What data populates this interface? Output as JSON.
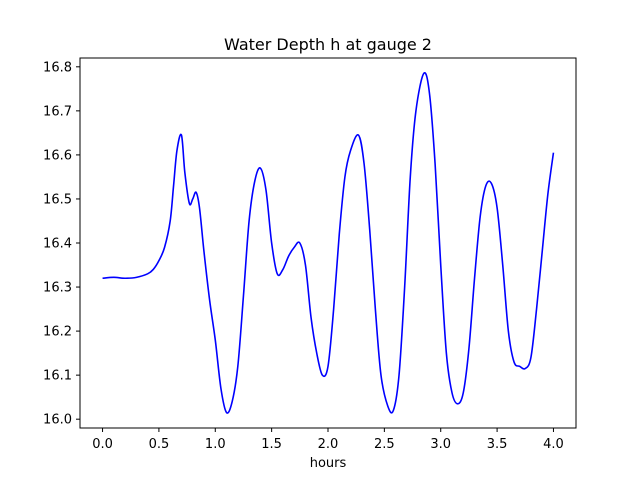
{
  "chart_data": {
    "type": "line",
    "title": "Water Depth h at gauge 2",
    "xlabel": "hours",
    "ylabel": "",
    "xlim": [
      -0.2,
      4.2
    ],
    "ylim": [
      15.98,
      16.82
    ],
    "xticks": [
      0.0,
      0.5,
      1.0,
      1.5,
      2.0,
      2.5,
      3.0,
      3.5,
      4.0
    ],
    "xtick_labels": [
      "0.0",
      "0.5",
      "1.0",
      "1.5",
      "2.0",
      "2.5",
      "3.0",
      "3.5",
      "4.0"
    ],
    "yticks": [
      16.0,
      16.1,
      16.2,
      16.3,
      16.4,
      16.5,
      16.6,
      16.7,
      16.8
    ],
    "ytick_labels": [
      "16.0",
      "16.1",
      "16.2",
      "16.3",
      "16.4",
      "16.5",
      "16.6",
      "16.7",
      "16.8"
    ],
    "grid": false,
    "series": [
      {
        "color": "#0000ff",
        "x": [
          0.0,
          0.1,
          0.2,
          0.3,
          0.4,
          0.45,
          0.5,
          0.55,
          0.6,
          0.63,
          0.66,
          0.7,
          0.73,
          0.77,
          0.8,
          0.83,
          0.86,
          0.9,
          0.95,
          1.0,
          1.05,
          1.1,
          1.15,
          1.2,
          1.25,
          1.3,
          1.35,
          1.4,
          1.45,
          1.5,
          1.55,
          1.6,
          1.65,
          1.7,
          1.75,
          1.8,
          1.85,
          1.9,
          1.95,
          2.0,
          2.05,
          2.1,
          2.15,
          2.2,
          2.27,
          2.32,
          2.37,
          2.42,
          2.47,
          2.53,
          2.58,
          2.63,
          2.68,
          2.73,
          2.78,
          2.85,
          2.9,
          2.95,
          3.0,
          3.05,
          3.1,
          3.15,
          3.2,
          3.25,
          3.3,
          3.35,
          3.4,
          3.45,
          3.5,
          3.55,
          3.6,
          3.65,
          3.7,
          3.75,
          3.8,
          3.85,
          3.9,
          3.95,
          4.0
        ],
        "y": [
          16.32,
          16.322,
          16.32,
          16.322,
          16.33,
          16.34,
          16.36,
          16.39,
          16.45,
          16.53,
          16.61,
          16.645,
          16.56,
          16.49,
          16.5,
          16.515,
          16.48,
          16.38,
          16.27,
          16.18,
          16.07,
          16.015,
          16.04,
          16.12,
          16.28,
          16.45,
          16.54,
          16.57,
          16.52,
          16.4,
          16.33,
          16.34,
          16.37,
          16.39,
          16.4,
          16.35,
          16.23,
          16.15,
          16.1,
          16.12,
          16.25,
          16.42,
          16.55,
          16.61,
          16.645,
          16.58,
          16.43,
          16.25,
          16.1,
          16.03,
          16.02,
          16.1,
          16.3,
          16.55,
          16.7,
          16.785,
          16.74,
          16.58,
          16.35,
          16.15,
          16.06,
          16.035,
          16.06,
          16.16,
          16.32,
          16.46,
          16.53,
          16.535,
          16.48,
          16.35,
          16.2,
          16.13,
          16.12,
          16.115,
          16.14,
          16.25,
          16.38,
          16.51,
          16.605
        ]
      }
    ]
  }
}
